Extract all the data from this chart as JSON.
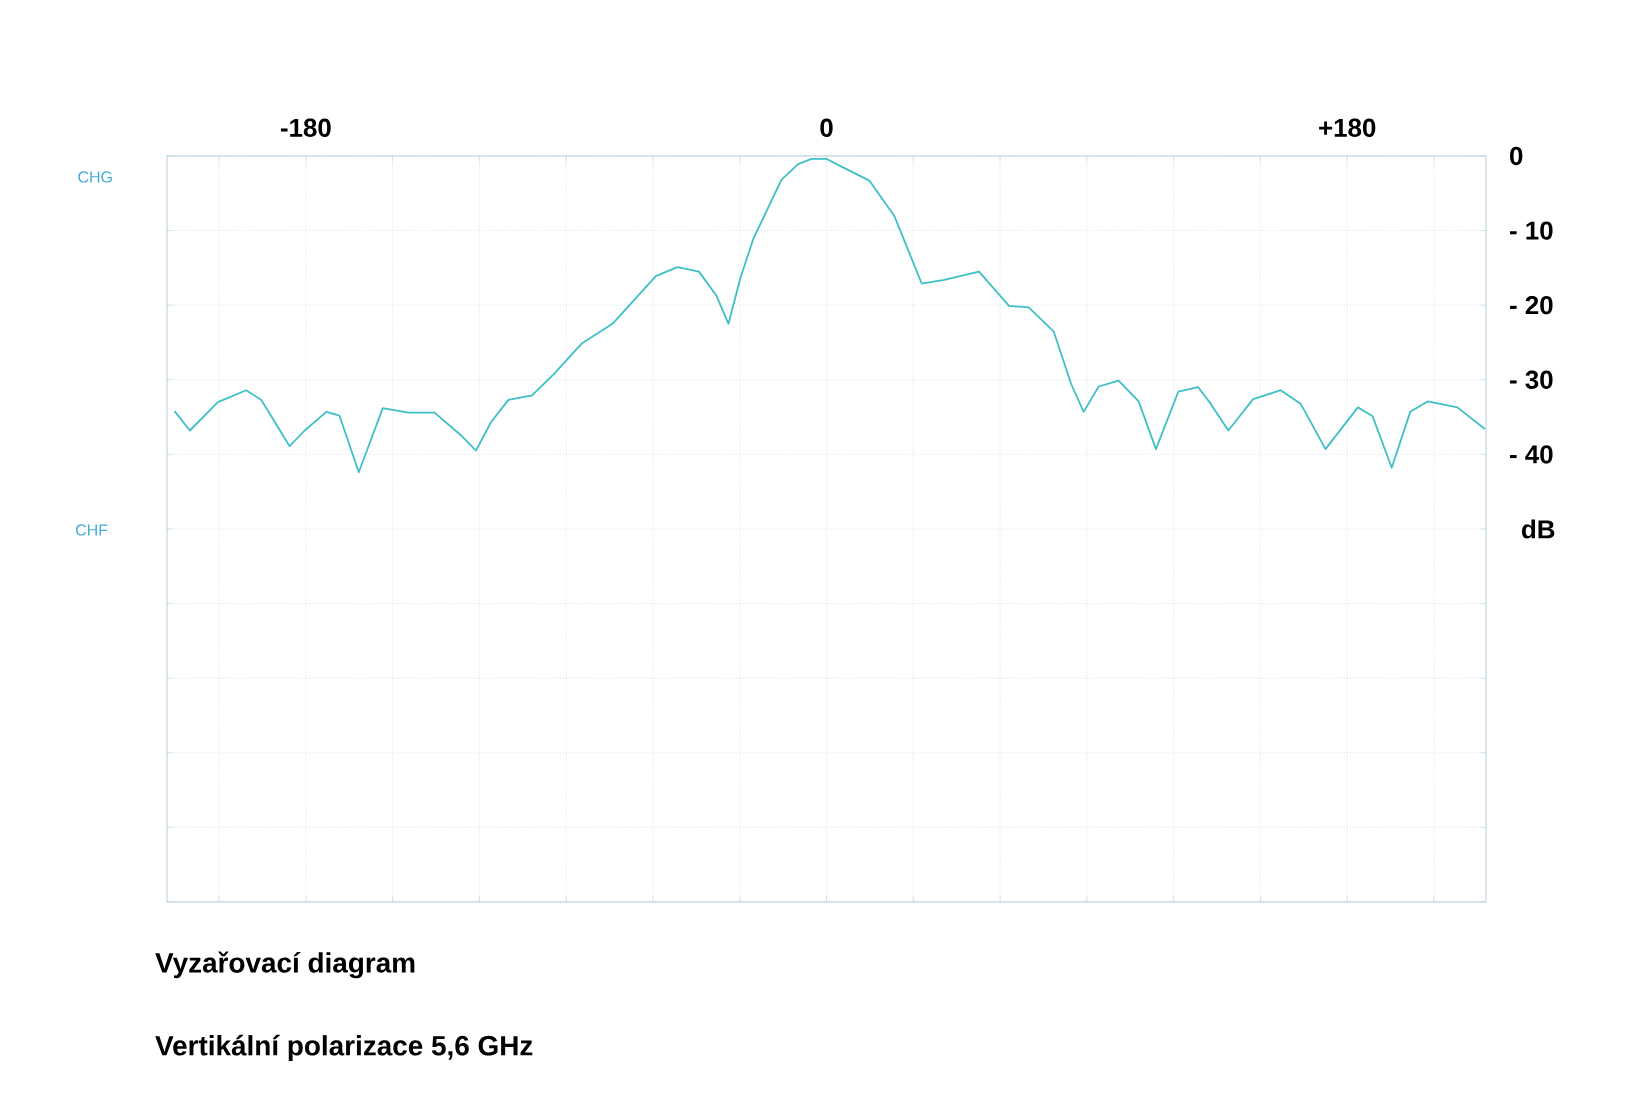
{
  "chart_data": {
    "type": "line",
    "title": "Vyzařovací diagram",
    "subtitle": "Vertikální polarizace   5,6 GHz",
    "ylabel": "dB",
    "annotations": [
      "CHG",
      "CHF"
    ],
    "x": [
      -225.4,
      -220.1,
      -210.4,
      -200.6,
      -195.4,
      -185.6,
      -180.4,
      -172.9,
      -168.4,
      -161.7,
      -153.4,
      -144.5,
      -135.5,
      -126.5,
      -121.2,
      -116.0,
      -110.0,
      -101.8,
      -94.2,
      -84.5,
      -74.0,
      -59.0,
      -51.6,
      -44.1,
      -38.1,
      -33.9,
      -29.8,
      -25.3,
      -15.6,
      -9.8,
      -5.2,
      0.1,
      4.5,
      14.8,
      23.4,
      32.9,
      40.7,
      52.7,
      63.1,
      69.9,
      78.5,
      84.6,
      88.9,
      94.1,
      101.0,
      107.9,
      113.9,
      121.6,
      128.5,
      132.8,
      138.9,
      147.5,
      157.0,
      163.9,
      172.5,
      183.7,
      188.8,
      195.4,
      201.8,
      207.8,
      218.1,
      227.6
    ],
    "series": [
      {
        "color": "#3fbfc6",
        "values": [
          -34.2,
          -36.8,
          -33.0,
          -31.4,
          -32.7,
          -38.9,
          -36.8,
          -34.3,
          -34.8,
          -42.4,
          -33.8,
          -34.4,
          -34.4,
          -37.4,
          -39.5,
          -35.7,
          -32.7,
          -32.1,
          -29.2,
          -25.1,
          -22.5,
          -16.1,
          -14.9,
          -15.5,
          -18.7,
          -22.5,
          -16.4,
          -11.1,
          -3.2,
          -1.1,
          -0.4,
          -0.4,
          -1.3,
          -3.3,
          -8.0,
          -17.1,
          -16.6,
          -15.5,
          -20.1,
          -20.3,
          -23.5,
          -30.6,
          -34.3,
          -30.9,
          -30.1,
          -32.9,
          -39.3,
          -31.6,
          -31.0,
          -33.2,
          -36.8,
          -32.6,
          -31.4,
          -33.2,
          -39.3,
          -33.7,
          -34.9,
          -41.8,
          -34.3,
          -32.9,
          -33.7,
          -36.6
        ]
      }
    ],
    "xlim": [
      -228,
      228
    ],
    "ylim": [
      -100,
      0
    ],
    "xticks": [
      {
        "value": -210,
        "label": null
      },
      -180,
      {
        "value": -150,
        "label": null
      },
      {
        "value": -120,
        "label": null
      },
      {
        "value": -90,
        "label": null
      },
      {
        "value": -60,
        "label": null
      },
      {
        "value": -30,
        "label": null
      },
      0,
      {
        "value": 30,
        "label": null
      },
      {
        "value": 60,
        "label": null
      },
      {
        "value": 90,
        "label": null
      },
      {
        "value": 120,
        "label": null
      },
      {
        "value": 150,
        "label": null
      },
      {
        "value": 180,
        "label": "+180"
      },
      {
        "value": 210,
        "label": null
      }
    ],
    "yticks": [
      0,
      {
        "value": -10,
        "label": "- 10"
      },
      {
        "value": -20,
        "label": "- 20"
      },
      {
        "value": -30,
        "label": "- 30"
      },
      {
        "value": -40,
        "label": "- 40"
      },
      {
        "value": -50,
        "label": null
      },
      {
        "value": -60,
        "label": null
      },
      {
        "value": -70,
        "label": null
      },
      {
        "value": -80,
        "label": null
      },
      {
        "value": -90,
        "label": null
      },
      {
        "value": -100,
        "label": null
      }
    ],
    "grid": true,
    "marker": "none",
    "line_style": "solid"
  }
}
